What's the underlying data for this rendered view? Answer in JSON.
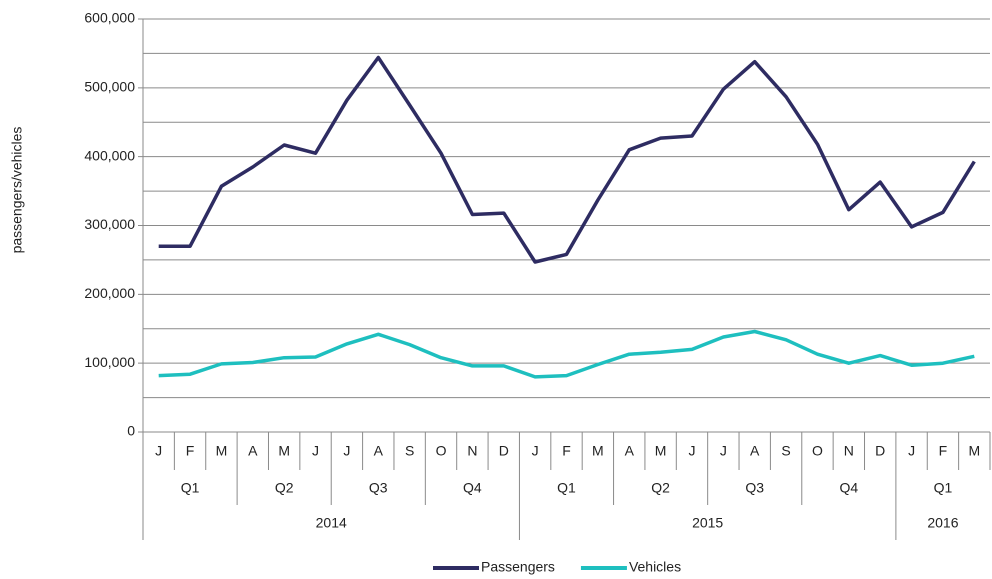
{
  "chart_data": {
    "type": "line",
    "y_label": "passengers/vehicles",
    "categories": [
      "J",
      "F",
      "M",
      "A",
      "M",
      "J",
      "J",
      "A",
      "S",
      "O",
      "N",
      "D",
      "J",
      "F",
      "M",
      "A",
      "M",
      "J",
      "J",
      "A",
      "S",
      "O",
      "N",
      "D",
      "J",
      "F",
      "M"
    ],
    "quarter_groups": [
      {
        "label": "Q1",
        "count": 3
      },
      {
        "label": "Q2",
        "count": 3
      },
      {
        "label": "Q3",
        "count": 3
      },
      {
        "label": "Q4",
        "count": 3
      },
      {
        "label": "Q1",
        "count": 3
      },
      {
        "label": "Q2",
        "count": 3
      },
      {
        "label": "Q3",
        "count": 3
      },
      {
        "label": "Q4",
        "count": 3
      },
      {
        "label": "Q1",
        "count": 3
      }
    ],
    "year_groups": [
      {
        "label": "2014",
        "count": 12
      },
      {
        "label": "2015",
        "count": 12
      },
      {
        "label": "2016",
        "count": 3
      }
    ],
    "series": [
      {
        "name": "Passengers",
        "color": "#2e2c62",
        "values": [
          270000,
          270000,
          357000,
          385000,
          417000,
          405000,
          482000,
          544000,
          475000,
          405000,
          316000,
          318000,
          247000,
          258000,
          337000,
          410000,
          427000,
          430000,
          498000,
          538000,
          487000,
          418000,
          323000,
          363000,
          298000,
          319000,
          393000
        ]
      },
      {
        "name": "Vehicles",
        "color": "#1ebfbf",
        "values": [
          82000,
          84000,
          99000,
          101000,
          108000,
          109000,
          128000,
          142000,
          127000,
          108000,
          96000,
          96000,
          80000,
          82000,
          98000,
          113000,
          116000,
          120000,
          138000,
          146000,
          134000,
          113000,
          100000,
          111000,
          97000,
          100000,
          110000
        ]
      }
    ],
    "ylim": [
      0,
      600000
    ],
    "yticks": [
      0,
      {
        "value": 100000,
        "label": "100,000"
      },
      {
        "value": 200000,
        "label": "200,000"
      },
      {
        "value": 300000,
        "label": "300,000"
      },
      {
        "value": 400000,
        "label": "400,000"
      },
      {
        "value": 500000,
        "label": "500,000"
      },
      {
        "value": 600000,
        "label": "600,000"
      }
    ],
    "minor_yticks": [
      50000,
      150000,
      250000,
      350000,
      450000,
      550000
    ],
    "grid": true,
    "legend": "bottom"
  }
}
